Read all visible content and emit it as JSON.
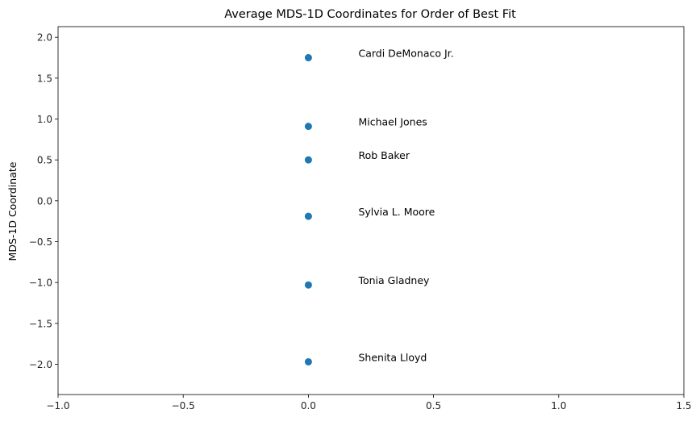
{
  "chart_data": {
    "type": "scatter",
    "title": "Average MDS-1D Coordinates for Order of Best Fit",
    "xlabel": "",
    "ylabel": "MDS-1D Coordinate",
    "xlim": [
      -1.0,
      1.5
    ],
    "ylim": [
      -2.37,
      2.13
    ],
    "grid": false,
    "x_ticks": [
      -1.0,
      -0.5,
      0.0,
      0.5,
      1.0,
      1.5
    ],
    "x_tick_labels": [
      "−1.0",
      "−0.5",
      "0.0",
      "0.5",
      "1.0",
      "1.5"
    ],
    "y_ticks": [
      2.0,
      1.5,
      1.0,
      0.5,
      0.0,
      -0.5,
      -1.0,
      -1.5,
      -2.0
    ],
    "y_tick_labels": [
      "2.0",
      "1.5",
      "1.0",
      "0.5",
      "0.0",
      "−0.5",
      "−1.0",
      "−1.5",
      "−2.0"
    ],
    "points": [
      {
        "label": "Cardi DeMonaco Jr.",
        "x": 0.0,
        "y": 1.75
      },
      {
        "label": "Michael Jones",
        "x": 0.0,
        "y": 0.91
      },
      {
        "label": "Rob Baker",
        "x": 0.0,
        "y": 0.5
      },
      {
        "label": "Sylvia L. Moore",
        "x": 0.0,
        "y": -0.19
      },
      {
        "label": "Tonia Gladney",
        "x": 0.0,
        "y": -1.03
      },
      {
        "label": "Shenita Lloyd",
        "x": 0.0,
        "y": -1.97
      }
    ],
    "annotation_offset_x": 0.2,
    "color": "#1f77b4"
  }
}
